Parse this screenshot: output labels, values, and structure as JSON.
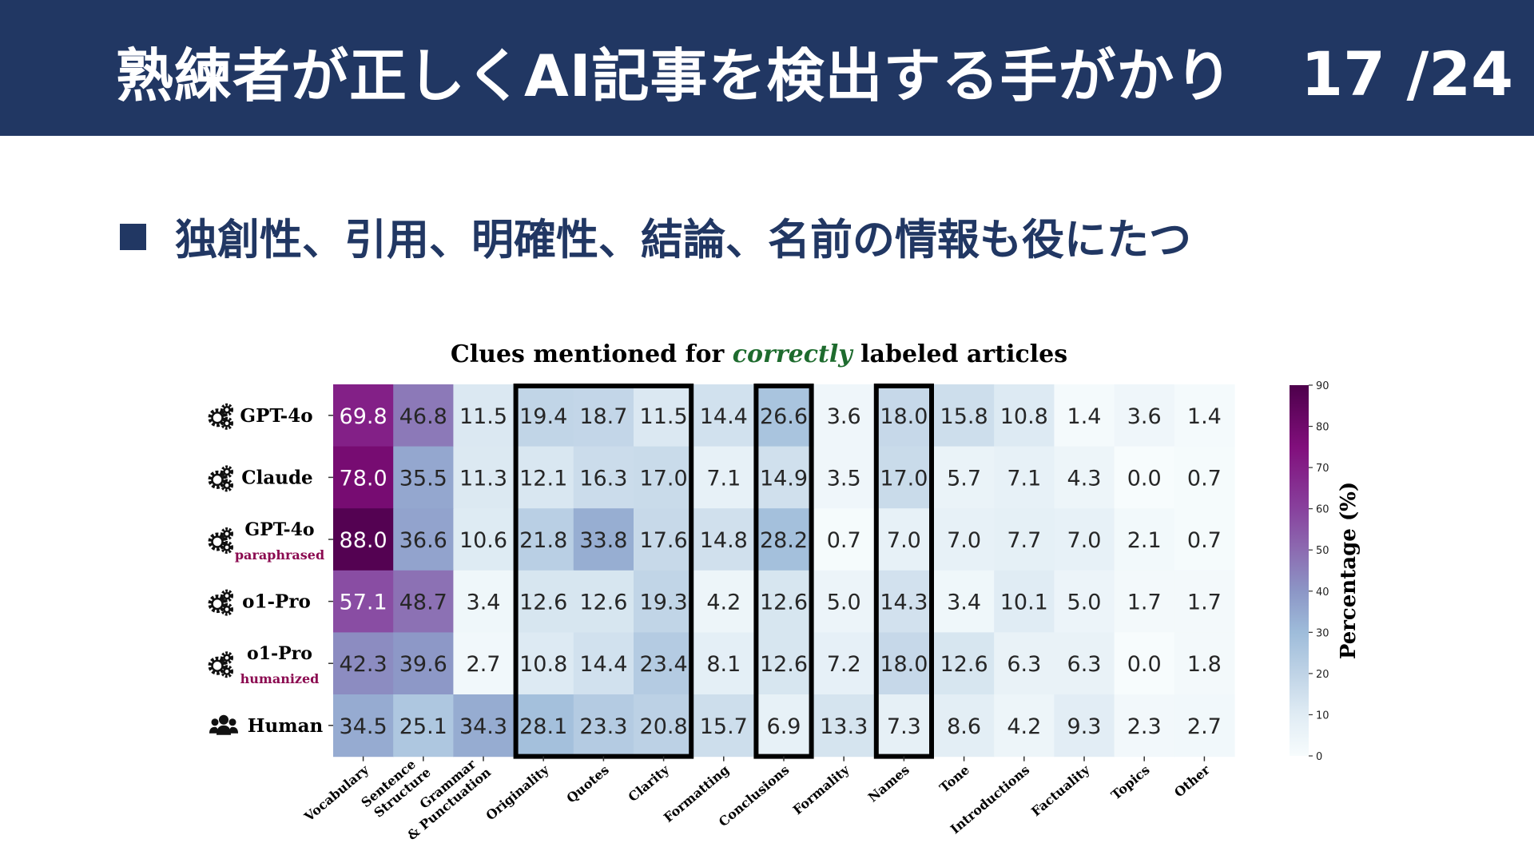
{
  "slide": {
    "title": "熟練者が正しくAI記事を検出する手がかり",
    "page": "17 /24",
    "bullet": "独創性、引用、明確性、結論、名前の情報も役にたつ"
  },
  "chart_data": {
    "type": "heatmap",
    "title": {
      "prefix": "Clues mentioned for ",
      "emphasis": "correctly",
      "suffix": " labeled articles",
      "emphasis_color": "#1e6b2e"
    },
    "rows": [
      {
        "name": "GPT-4o",
        "subtitle": "",
        "icon": "gears-icon"
      },
      {
        "name": "Claude",
        "subtitle": "",
        "icon": "gears-icon"
      },
      {
        "name": "GPT-4o",
        "subtitle": "paraphrased",
        "icon": "gears-icon"
      },
      {
        "name": "o1-Pro",
        "subtitle": "",
        "icon": "gears-icon"
      },
      {
        "name": "o1-Pro",
        "subtitle": "humanized",
        "icon": "gears-icon"
      },
      {
        "name": "Human",
        "subtitle": "",
        "icon": "people-icon"
      }
    ],
    "columns": [
      [
        "Vocabulary"
      ],
      [
        "Sentence",
        "Structure"
      ],
      [
        "Grammar",
        "& Punctuation"
      ],
      [
        "Originality"
      ],
      [
        "Quotes"
      ],
      [
        "Clarity"
      ],
      [
        "Formatting"
      ],
      [
        "Conclusions"
      ],
      [
        "Formality"
      ],
      [
        "Names"
      ],
      [
        "Tone"
      ],
      [
        "Introductions"
      ],
      [
        "Factuality"
      ],
      [
        "Topics"
      ],
      [
        "Other"
      ]
    ],
    "values": [
      [
        69.8,
        46.8,
        11.5,
        19.4,
        18.7,
        11.5,
        14.4,
        26.6,
        3.6,
        18.0,
        15.8,
        10.8,
        1.4,
        3.6,
        1.4
      ],
      [
        78.0,
        35.5,
        11.3,
        12.1,
        16.3,
        17.0,
        7.1,
        14.9,
        3.5,
        17.0,
        5.7,
        7.1,
        4.3,
        0.0,
        0.7
      ],
      [
        88.0,
        36.6,
        10.6,
        21.8,
        33.8,
        17.6,
        14.8,
        28.2,
        0.7,
        7.0,
        7.0,
        7.7,
        7.0,
        2.1,
        0.7
      ],
      [
        57.1,
        48.7,
        3.4,
        12.6,
        12.6,
        19.3,
        4.2,
        12.6,
        5.0,
        14.3,
        3.4,
        10.1,
        5.0,
        1.7,
        1.7
      ],
      [
        42.3,
        39.6,
        2.7,
        10.8,
        14.4,
        23.4,
        8.1,
        12.6,
        7.2,
        18.0,
        12.6,
        6.3,
        6.3,
        0.0,
        1.8
      ],
      [
        34.5,
        25.1,
        34.3,
        28.1,
        23.3,
        20.8,
        15.7,
        6.9,
        13.3,
        7.3,
        8.6,
        4.2,
        9.3,
        2.3,
        2.7
      ]
    ],
    "highlight_column_groups": [
      [
        "Originality",
        "Quotes",
        "Clarity"
      ],
      [
        "Conclusions"
      ],
      [
        "Names"
      ]
    ],
    "colorbar": {
      "label": "Percentage (%)",
      "min": 0,
      "max": 90,
      "ticks": [
        "0",
        "10",
        "20",
        "30",
        "40",
        "50",
        "60",
        "70",
        "80",
        "90"
      ]
    },
    "colormap": "BuPu",
    "subtitle_color": "#8b0a50"
  }
}
